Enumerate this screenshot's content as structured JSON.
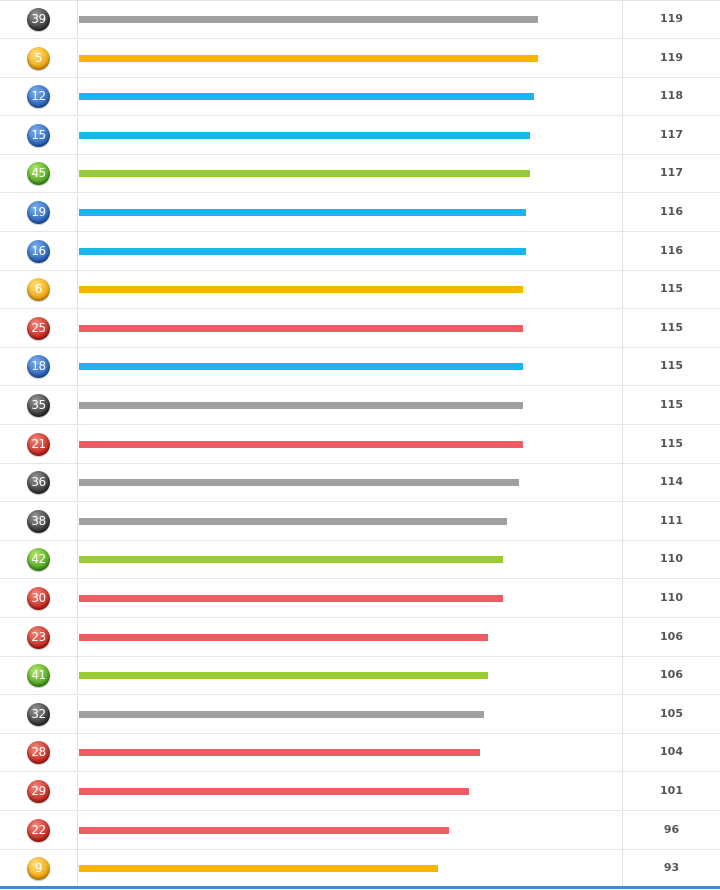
{
  "chart_data": {
    "type": "bar",
    "orientation": "horizontal",
    "max_scale": 119,
    "categories": [
      "39",
      "5",
      "12",
      "15",
      "45",
      "19",
      "16",
      "6",
      "25",
      "18",
      "35",
      "21",
      "36",
      "38",
      "42",
      "30",
      "23",
      "41",
      "32",
      "28",
      "29",
      "22",
      "9"
    ],
    "values": [
      119,
      119,
      118,
      117,
      117,
      116,
      116,
      115,
      115,
      115,
      115,
      115,
      114,
      111,
      110,
      110,
      106,
      106,
      105,
      104,
      101,
      96,
      93
    ],
    "ball_colors": [
      "gray",
      "gold",
      "blue",
      "blue",
      "green",
      "blue",
      "blue",
      "gold",
      "red",
      "blue",
      "gray",
      "red",
      "gray",
      "gray",
      "green",
      "red",
      "red",
      "green",
      "gray",
      "red",
      "red",
      "red",
      "gold"
    ],
    "value_labels": [
      "119",
      "119",
      "118",
      "117",
      "117",
      "116",
      "116",
      "115",
      "115",
      "115",
      "115",
      "115",
      "114",
      "111",
      "110",
      "110",
      "106",
      "106",
      "105",
      "104",
      "101",
      "96",
      "93"
    ]
  },
  "colors": {
    "gray": {
      "bar": "#a0a0a0",
      "ball_light": "#9a9a9a",
      "ball_dark": "#2b2b2b"
    },
    "gold": {
      "bar": "#f7b500",
      "ball_light": "#ffe07a",
      "ball_dark": "#f0a000"
    },
    "blue": {
      "bar": "#19b6ef",
      "ball_light": "#7fb0ee",
      "ball_dark": "#1f5db8"
    },
    "green": {
      "bar": "#99cc33",
      "ball_light": "#b6e86a",
      "ball_dark": "#3e9e14"
    },
    "red": {
      "bar": "#f05c63",
      "ball_light": "#f48a7e",
      "ball_dark": "#c11d12"
    }
  }
}
